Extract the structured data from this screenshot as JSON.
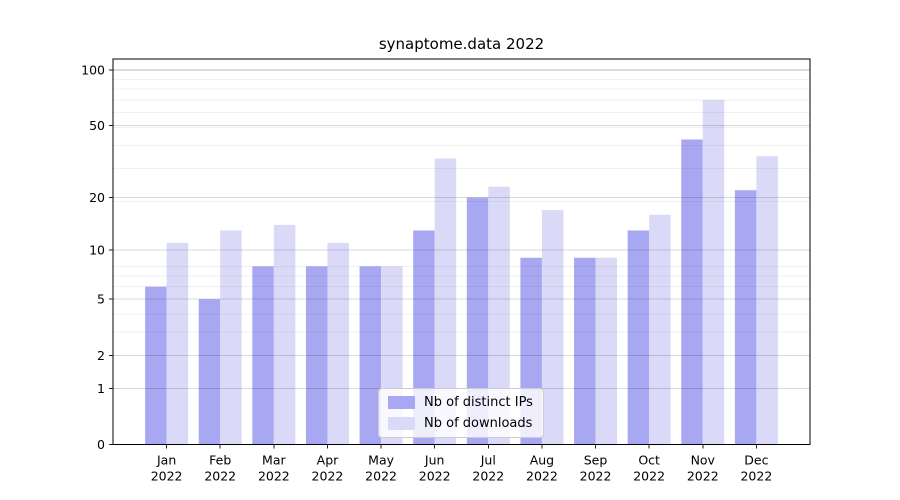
{
  "chart_data": {
    "type": "bar",
    "title": "synaptome.data 2022",
    "categories": [
      "Jan 2022",
      "Feb 2022",
      "Mar 2022",
      "Apr 2022",
      "May 2022",
      "Jun 2022",
      "Jul 2022",
      "Aug 2022",
      "Sep 2022",
      "Oct 2022",
      "Nov 2022",
      "Dec 2022"
    ],
    "x_tick_months": [
      "Jan",
      "Feb",
      "Mar",
      "Apr",
      "May",
      "Jun",
      "Jul",
      "Aug",
      "Sep",
      "Oct",
      "Nov",
      "Dec"
    ],
    "x_tick_year": "2022",
    "series": [
      {
        "name": "Nb of distinct IPs",
        "color": "#a8a8f2",
        "values": [
          6,
          5,
          8,
          8,
          8,
          13,
          20,
          9,
          9,
          13,
          42,
          22
        ]
      },
      {
        "name": "Nb of downloads",
        "color": "#dadaf8",
        "values": [
          11,
          13,
          14,
          11,
          8,
          33,
          23,
          17,
          9,
          16,
          69,
          34
        ]
      }
    ],
    "y_scale": "log10(1+value)",
    "y_ticks": [
      0,
      1,
      2,
      5,
      10,
      20,
      50,
      100
    ],
    "y_minor_gridlines": [
      3,
      4,
      6,
      7,
      8,
      19,
      29,
      39,
      49,
      59,
      69,
      79,
      89
    ],
    "ylim": [
      0,
      115
    ],
    "grid": true,
    "legend_position": "lower center"
  },
  "legend": {
    "items": [
      {
        "label": "Nb of distinct IPs",
        "color": "#a8a8f2"
      },
      {
        "label": "Nb of downloads",
        "color": "#dadaf8"
      }
    ]
  },
  "colors": {
    "background": "#ffffff",
    "bar_distinct_ips": "#a8a8f2",
    "bar_downloads": "#dadaf8",
    "gridline_top": "rgba(0,0,0,0.28)",
    "gridline_major": "rgba(0,0,0,0.15)",
    "gridline_minor": "rgba(0,0,0,0.055)",
    "axis_line": "#000000",
    "tick_mark": "#222222",
    "legend_border": "#cccccc",
    "text": "#000000"
  }
}
